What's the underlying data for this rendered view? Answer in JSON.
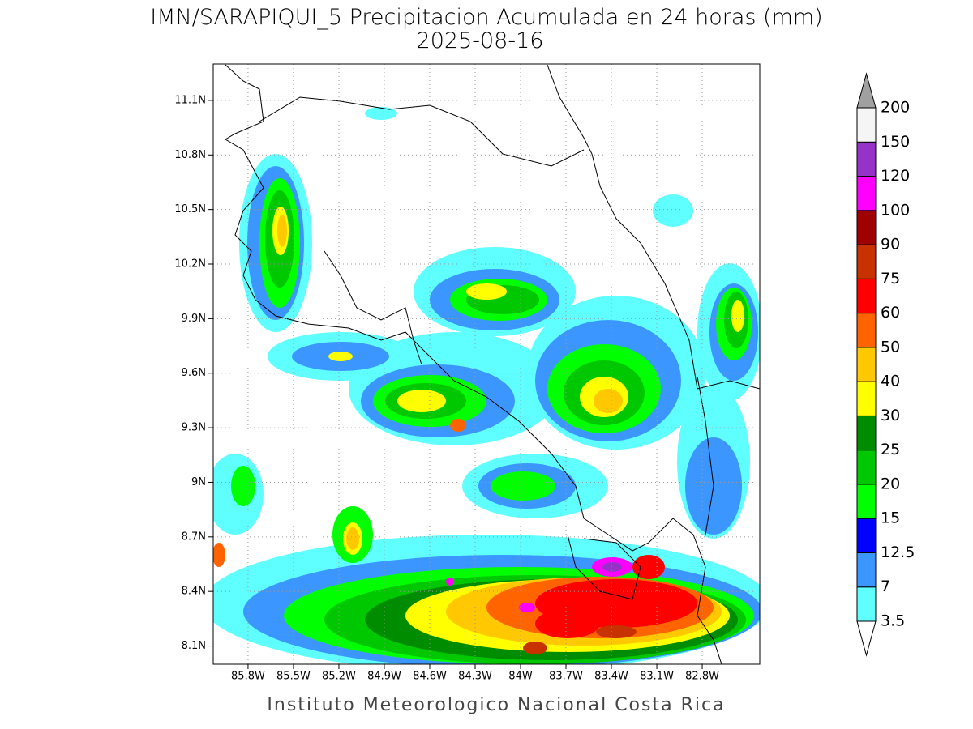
{
  "header": {
    "title": "IMN/SARAPIQUI_5 Precipitacion Acumulada en 24 horas (mm)",
    "date": "2025-08-16"
  },
  "map": {
    "lon_range": [
      -86.03,
      -82.42
    ],
    "lat_range": [
      8.0,
      11.3
    ],
    "lon_ticks": [
      {
        "value": -85.8,
        "label": "85.8W"
      },
      {
        "value": -85.5,
        "label": "85.5W"
      },
      {
        "value": -85.2,
        "label": "85.2W"
      },
      {
        "value": -84.9,
        "label": "84.9W"
      },
      {
        "value": -84.6,
        "label": "84.6W"
      },
      {
        "value": -84.3,
        "label": "84.3W"
      },
      {
        "value": -84.0,
        "label": "84W"
      },
      {
        "value": -83.7,
        "label": "83.7W"
      },
      {
        "value": -83.4,
        "label": "83.4W"
      },
      {
        "value": -83.1,
        "label": "83.1W"
      },
      {
        "value": -82.8,
        "label": "82.8W"
      }
    ],
    "lat_ticks": [
      {
        "value": 11.1,
        "label": "11.1N"
      },
      {
        "value": 10.8,
        "label": "10.8N"
      },
      {
        "value": 10.5,
        "label": "10.5N"
      },
      {
        "value": 10.2,
        "label": "10.2N"
      },
      {
        "value": 9.9,
        "label": "9.9N"
      },
      {
        "value": 9.6,
        "label": "9.6N"
      },
      {
        "value": 9.3,
        "label": "9.3N"
      },
      {
        "value": 9.0,
        "label": "9N"
      },
      {
        "value": 8.7,
        "label": "8.7N"
      },
      {
        "value": 8.4,
        "label": "8.4N"
      },
      {
        "value": 8.1,
        "label": "8.1N"
      }
    ],
    "grid": true
  },
  "colorbar": {
    "levels": [
      3.5,
      7,
      12.5,
      15,
      20,
      25,
      30,
      40,
      50,
      60,
      75,
      90,
      100,
      120,
      150,
      200
    ],
    "colors": [
      "#5fffff",
      "#3c96ff",
      "#0000ff",
      "#00ff00",
      "#00c800",
      "#008c00",
      "#ffff00",
      "#ffc800",
      "#ff6400",
      "#ff0000",
      "#c83200",
      "#a00000",
      "#ff00ff",
      "#9632c8",
      "#f5f5f5"
    ],
    "under_color": "#ffffff",
    "over_color": "#a0a0a0"
  },
  "footer": "Instituto Meteorologico Nacional Costa Rica"
}
